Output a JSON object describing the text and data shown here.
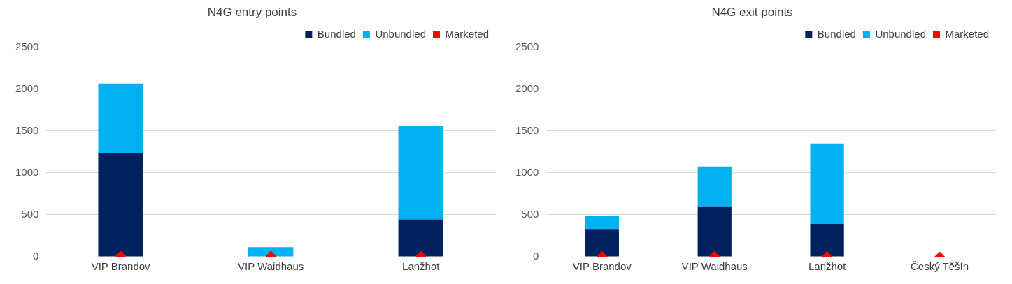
{
  "chart_data": [
    {
      "type": "bar",
      "title": "N4G entry points",
      "categories": [
        "VIP Brandov",
        "VIP Waidhaus",
        "Lanžhot"
      ],
      "stacked": true,
      "ylim": [
        0,
        2500
      ],
      "yticks": [
        0,
        500,
        1000,
        1500,
        2000,
        2500
      ],
      "grid": "y",
      "legend": "top right",
      "series": [
        {
          "name": "Bundled",
          "color": "#002060",
          "values": [
            1240,
            0,
            445
          ]
        },
        {
          "name": "Unbundled",
          "color": "#00b0f0",
          "values": [
            825,
            115,
            1115
          ]
        },
        {
          "name": "Marketed",
          "type": "scatter",
          "marker": "diamond",
          "color": "#ff0000",
          "x": [
            "VIP Brandov",
            "VIP Waidhaus",
            "Lanžhot"
          ],
          "values": [
            10,
            10,
            10
          ]
        }
      ]
    },
    {
      "type": "bar",
      "title": "N4G exit points",
      "categories": [
        "VIP Brandov",
        "VIP Waidhaus",
        "Lanžhot",
        "Český Těšín"
      ],
      "stacked": true,
      "ylim": [
        0,
        2500
      ],
      "yticks": [
        0,
        500,
        1000,
        1500,
        2000,
        2500
      ],
      "grid": "y",
      "legend": "top right",
      "series": [
        {
          "name": "Bundled",
          "color": "#002060",
          "values": [
            330,
            600,
            390,
            0
          ]
        },
        {
          "name": "Unbundled",
          "color": "#00b0f0",
          "values": [
            155,
            475,
            960,
            0
          ]
        },
        {
          "name": "Marketed",
          "type": "scatter",
          "marker": "diamond",
          "color": "#ff0000",
          "x": [
            "VIP Brandov",
            "VIP Waidhaus",
            "Lanžhot",
            "Český Těšín"
          ],
          "values": [
            5,
            5,
            5,
            0
          ]
        }
      ]
    }
  ]
}
